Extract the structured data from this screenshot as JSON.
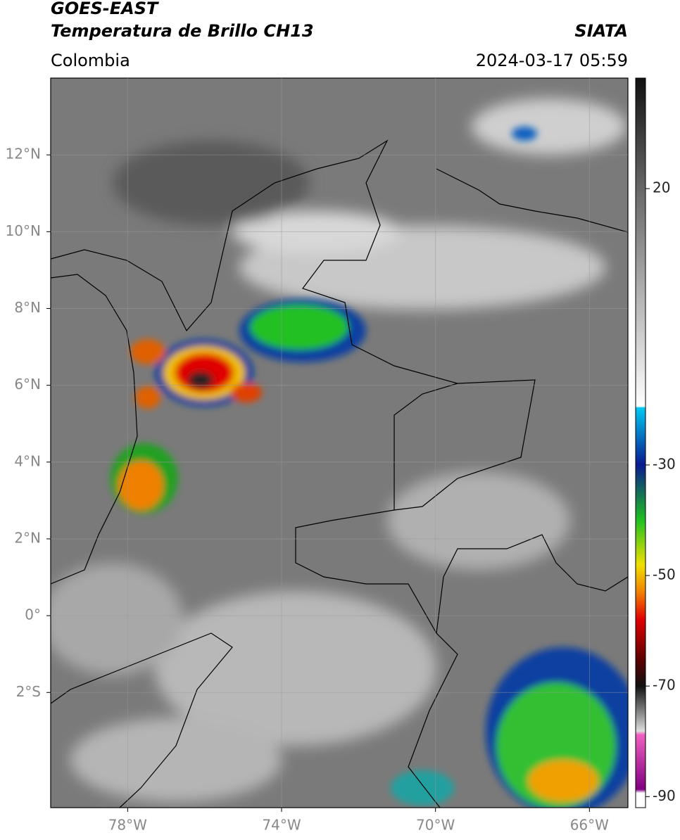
{
  "header": {
    "satellite": "GOES-EAST",
    "product": "Temperatura de Brillo CH13",
    "source": "SIATA",
    "region": "Colombia",
    "datetime": "2024-03-17 05:59"
  },
  "map": {
    "lon_range": [
      -80,
      -65
    ],
    "lat_range": [
      -5,
      14
    ],
    "grid": true,
    "lon_ticks": [
      {
        "value": -78,
        "label": "78°W"
      },
      {
        "value": -74,
        "label": "74°W"
      },
      {
        "value": -70,
        "label": "70°W"
      },
      {
        "value": -66,
        "label": "66°W"
      }
    ],
    "lat_ticks": [
      {
        "value": 12,
        "label": "12°N"
      },
      {
        "value": 10,
        "label": "10°N"
      },
      {
        "value": 8,
        "label": "8°N"
      },
      {
        "value": 6,
        "label": "6°N"
      },
      {
        "value": 4,
        "label": "4°N"
      },
      {
        "value": 2,
        "label": "2°N"
      },
      {
        "value": 0,
        "label": "0°"
      },
      {
        "value": -2,
        "label": "2°S"
      }
    ]
  },
  "colorbar": {
    "range": [
      -92,
      40
    ],
    "ticks": [
      20,
      -30,
      -50,
      -70,
      -90
    ]
  }
}
